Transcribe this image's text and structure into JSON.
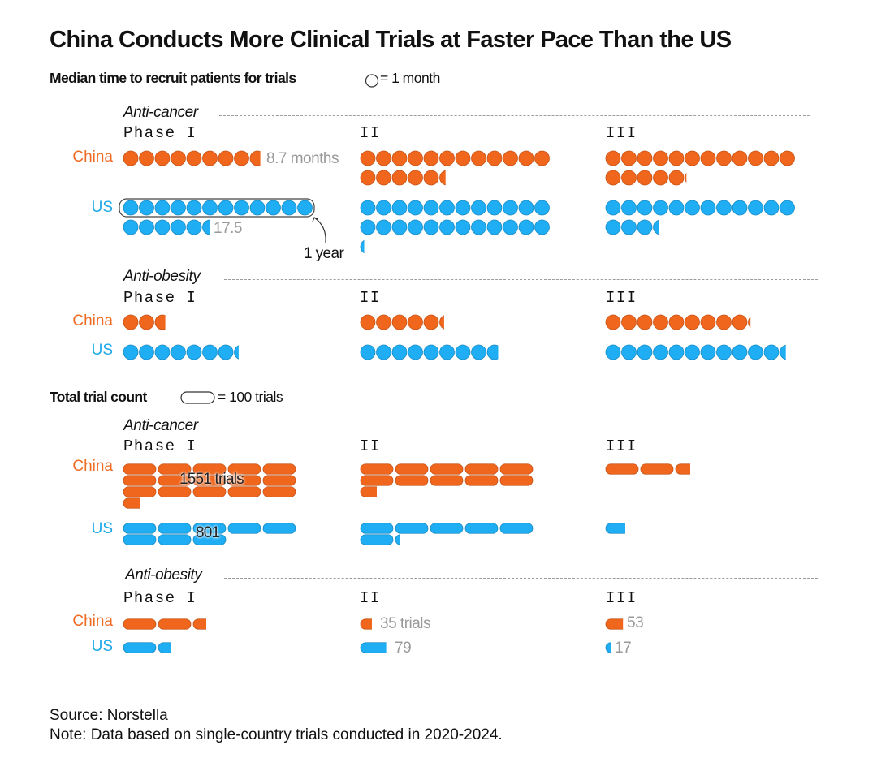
{
  "title": "China Conducts More Clinical Trials at Faster Pace Than the US",
  "colors": {
    "china": "#f0661c",
    "china_stroke": "#c5541a",
    "us": "#1fadf4",
    "us_stroke": "#1a8bc2"
  },
  "recruit_section": {
    "heading": "Median time to recruit patients for trials",
    "legend": "= 1 month",
    "annotation": "1 year"
  },
  "count_section": {
    "heading": "Total trial count",
    "legend": "= 100 trials"
  },
  "labels": {
    "anti_cancer": "Anti-cancer",
    "anti_obesity": "Anti-obesity",
    "phase1": "Phase I",
    "phase2": "II",
    "phase3": "III",
    "china": "China",
    "us": "US"
  },
  "chart_data": [
    {
      "type": "pictogram",
      "title": "Median time to recruit patients for trials",
      "unit": "months",
      "icon_value": "1 month per circle",
      "series": [
        {
          "name": "China",
          "group": "Anti-cancer",
          "values": {
            "Phase I": 8.7,
            "II": 17.4,
            "III": 17.1
          }
        },
        {
          "name": "US",
          "group": "Anti-cancer",
          "values": {
            "Phase I": 17.5,
            "II": 24.25,
            "III": 15.4
          }
        },
        {
          "name": "China",
          "group": "Anti-obesity",
          "values": {
            "Phase I": 2.7,
            "II": 5.3,
            "III": 9.15
          }
        },
        {
          "name": "US",
          "group": "Anti-obesity",
          "values": {
            "Phase I": 7.3,
            "II": 8.75,
            "III": 11.4
          }
        }
      ],
      "annotations": [
        "8.7 months",
        "17.5",
        "1 year"
      ]
    },
    {
      "type": "pictogram",
      "title": "Total trial count",
      "unit": "trials",
      "icon_value": "100 trials per pill",
      "series": [
        {
          "name": "China",
          "group": "Anti-cancer",
          "values": {
            "Phase I": 1551,
            "II": 1050,
            "III": 245
          }
        },
        {
          "name": "US",
          "group": "Anti-cancer",
          "values": {
            "Phase I": 801,
            "II": 615,
            "III": 60
          }
        },
        {
          "name": "China",
          "group": "Anti-obesity",
          "values": {
            "Phase I": 240,
            "II": 35,
            "III": 53
          }
        },
        {
          "name": "US",
          "group": "Anti-obesity",
          "values": {
            "Phase I": 140,
            "II": 79,
            "III": 17
          }
        }
      ],
      "annotations": [
        "1551 trials",
        "801",
        "35 trials",
        "79",
        "53",
        "17"
      ]
    }
  ],
  "value_labels": {
    "china_cancer_p1_months": "8.7 months",
    "us_cancer_p1_months": "17.5",
    "china_cancer_p1_trials": "1551 trials",
    "us_cancer_p1_trials": "801",
    "china_obesity_p2_trials": "35 trials",
    "us_obesity_p2_trials": "79",
    "china_obesity_p3_trials": "53",
    "us_obesity_p3_trials": "17"
  },
  "footer": {
    "source": "Source: Norstella",
    "note": "Note: Data based on single-country trials conducted in 2020-2024."
  }
}
